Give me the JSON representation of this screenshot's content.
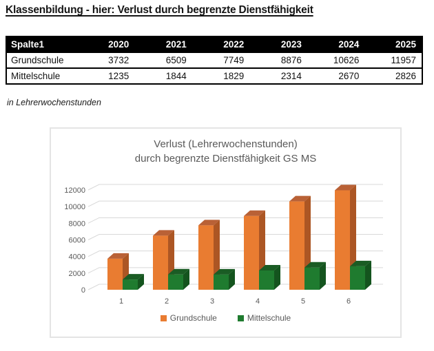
{
  "page": {
    "title": "Klassenbildung - hier: Verlust durch begrenzte Dienstfähigkeit",
    "note": "in Lehrerwochenstunden"
  },
  "table": {
    "headers": [
      "Spalte1",
      "2020",
      "2021",
      "2022",
      "2023",
      "2024",
      "2025"
    ],
    "rows": [
      {
        "label": "Grundschule",
        "values": [
          3732,
          6509,
          7749,
          8876,
          10626,
          11957
        ]
      },
      {
        "label": "Mittelschule",
        "values": [
          1235,
          1844,
          1829,
          2314,
          2670,
          2826
        ]
      }
    ]
  },
  "chart_data": {
    "type": "bar",
    "variant": "3d-column",
    "title": "Verlust (Lehrerwochenstunden) durch begrenzte Dienstfähigkeit GS MS",
    "title_lines": [
      "Verlust (Lehrerwochenstunden)",
      "durch begrenzte Dienstfähigkeit GS MS"
    ],
    "categories": [
      "1",
      "2",
      "3",
      "4",
      "5",
      "6"
    ],
    "series": [
      {
        "name": "Grundschule",
        "color": "#E97C31",
        "color_top": "#B96136",
        "color_side": "#AC5624",
        "values": [
          3732,
          6509,
          7749,
          8876,
          10626,
          11957
        ]
      },
      {
        "name": "Mittelschule",
        "color": "#1F7B2F",
        "color_top": "#1A5C24",
        "color_side": "#14541E",
        "values": [
          1235,
          1844,
          1829,
          2314,
          2670,
          2826
        ]
      }
    ],
    "xlabel": "",
    "ylabel": "",
    "ylim": [
      0,
      12000
    ],
    "ytick_step": 2000,
    "yticks": [
      0,
      2000,
      4000,
      6000,
      8000,
      10000,
      12000
    ],
    "grid": true,
    "grid_color": "#d8d8d8",
    "text_color": "#595959",
    "legend_position": "bottom"
  }
}
